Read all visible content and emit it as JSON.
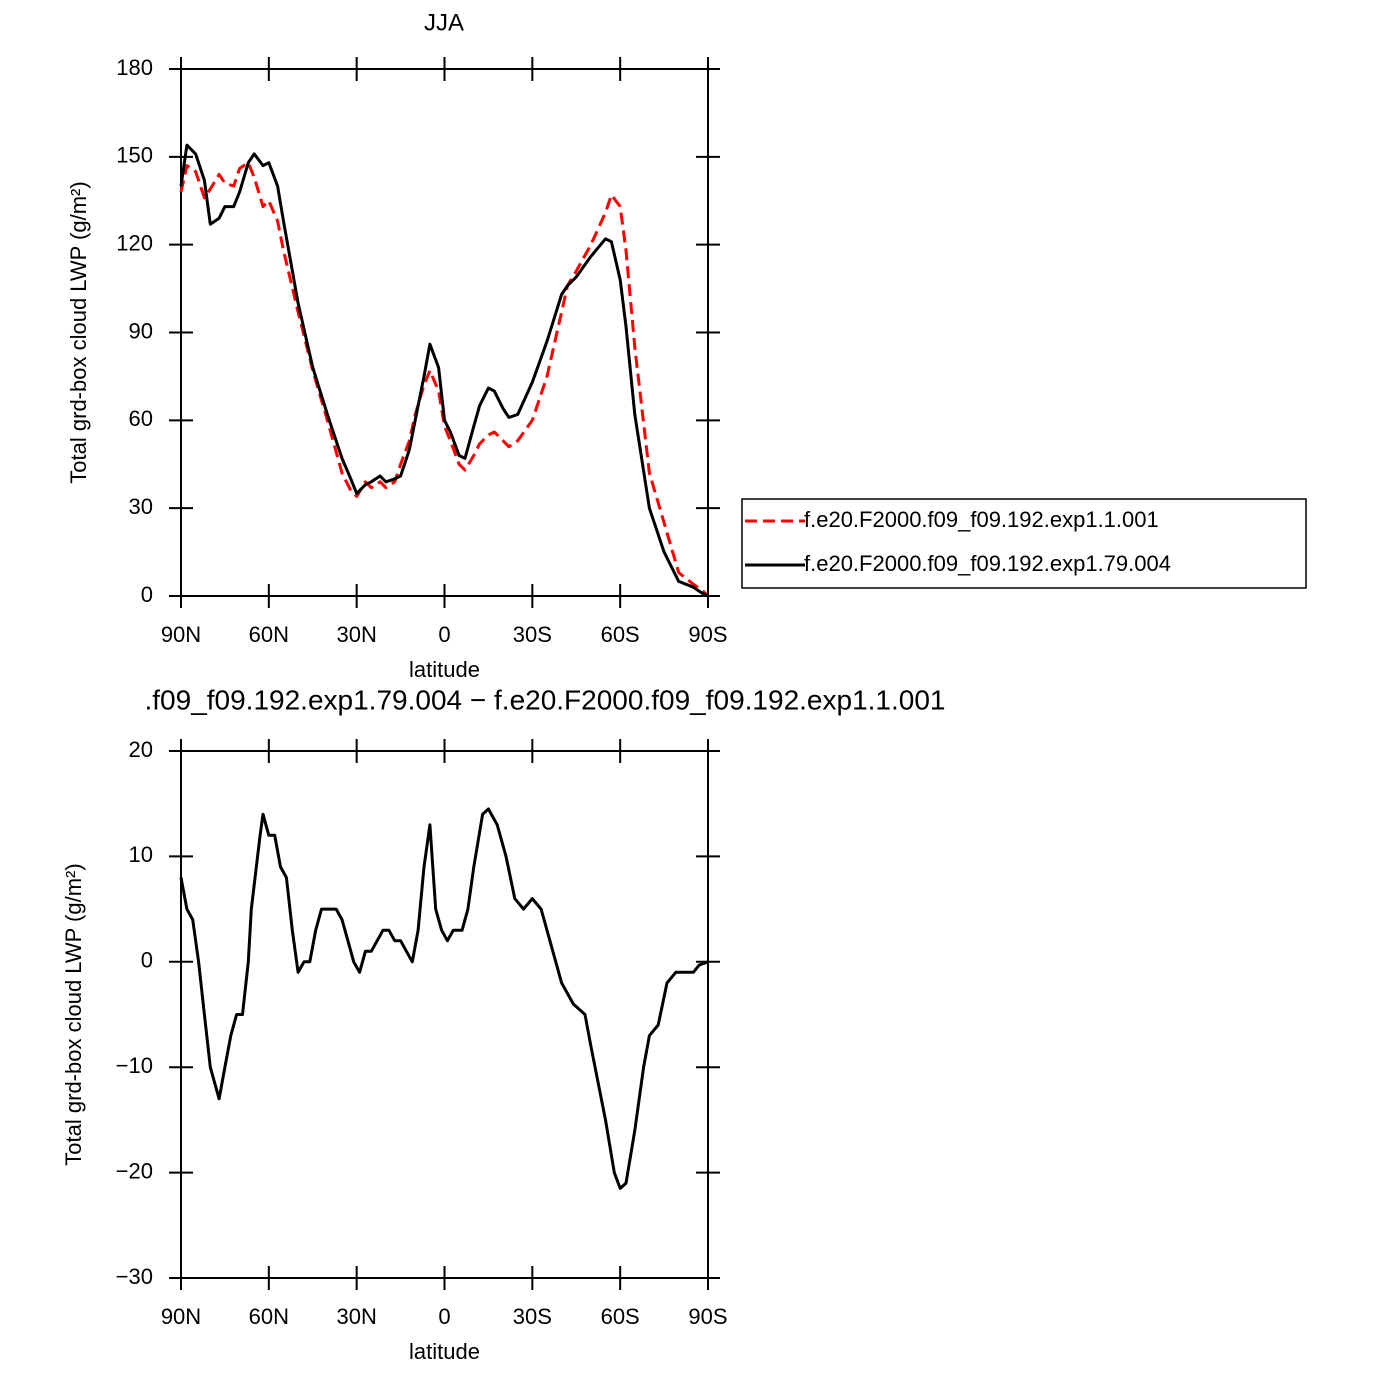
{
  "chart_data": [
    {
      "type": "line",
      "title": "JJA",
      "xlabel": "latitude",
      "ylabel": "Total grd-box cloud LWP (g/m²)",
      "x": [
        90,
        88,
        85,
        82,
        80,
        77,
        75,
        72,
        70,
        67,
        65,
        62,
        60,
        57,
        55,
        50,
        45,
        40,
        35,
        32,
        30,
        27,
        25,
        22,
        20,
        17,
        15,
        12,
        10,
        7,
        5,
        2,
        0,
        -2,
        -5,
        -7,
        -10,
        -12,
        -15,
        -17,
        -20,
        -22,
        -25,
        -30,
        -35,
        -40,
        -42,
        -45,
        -50,
        -55,
        -57,
        -60,
        -62,
        -65,
        -70,
        -75,
        -80,
        -85,
        -88,
        -90
      ],
      "series": [
        {
          "name": "f.e20.F2000.f09_f09.192.exp1.1.001",
          "color": "#ff0000",
          "linestyle": "dashed",
          "values": [
            138,
            147,
            145,
            136,
            139,
            144,
            141,
            140,
            146,
            148,
            143,
            133,
            135,
            128,
            118,
            97,
            77,
            60,
            42,
            36,
            34,
            39,
            37,
            39,
            37,
            39,
            45,
            53,
            62,
            72,
            77,
            70,
            58,
            53,
            45,
            43,
            48,
            52,
            55,
            56,
            53,
            51,
            53,
            60,
            75,
            97,
            106,
            111,
            120,
            131,
            137,
            133,
            118,
            85,
            42,
            25,
            8,
            4,
            2,
            0
          ]
        },
        {
          "name": "f.e20.F2000.f09_f09.192.exp1.79.004",
          "color": "#000000",
          "linestyle": "solid",
          "values": [
            140,
            154,
            151,
            142,
            127,
            129,
            133,
            133,
            138,
            148,
            151,
            147,
            148,
            140,
            128,
            100,
            78,
            62,
            47,
            40,
            35,
            38,
            39,
            41,
            39,
            40,
            41,
            50,
            60,
            75,
            86,
            78,
            60,
            56,
            48,
            47,
            58,
            65,
            71,
            70,
            64,
            61,
            62,
            73,
            87,
            103,
            106,
            109,
            116,
            122,
            121,
            108,
            92,
            62,
            30,
            15,
            5,
            3,
            1,
            0
          ]
        }
      ],
      "xlim": [
        90,
        -90
      ],
      "xticks": [
        {
          "value": 90,
          "label": "90N"
        },
        {
          "value": 60,
          "label": "60N"
        },
        {
          "value": 30,
          "label": "30N"
        },
        0,
        {
          "value": -30,
          "label": "30S"
        },
        {
          "value": -60,
          "label": "60S"
        },
        {
          "value": -90,
          "label": "90S"
        }
      ],
      "ylim": [
        0,
        180
      ],
      "yticks": [
        0,
        30,
        60,
        90,
        120,
        150,
        180
      ],
      "legend": "right"
    },
    {
      "type": "line",
      "title": ".f09_f09.192.exp1.79.004 − f.e20.F2000.f09_f09.192.exp1.1.001",
      "xlabel": "latitude",
      "ylabel": "Total grd-box cloud LWP (g/m²)",
      "x": [
        90,
        88,
        86,
        84,
        82,
        80,
        77,
        75,
        73,
        71,
        69,
        67,
        66,
        63,
        62,
        60,
        58,
        56,
        54,
        52,
        50,
        48,
        46,
        44,
        42,
        37,
        35,
        33,
        31,
        29,
        27,
        25,
        23,
        21,
        19,
        17,
        15,
        13,
        11,
        9,
        7,
        5,
        3,
        1,
        -1,
        -3,
        -6,
        -8,
        -10,
        -13,
        -15,
        -18,
        -21,
        -24,
        -27,
        -30,
        -33,
        -36,
        -40,
        -44,
        -48,
        -50,
        -55,
        -58,
        -60,
        -62,
        -65,
        -68,
        -70,
        -73,
        -76,
        -79,
        -82,
        -85,
        -87,
        -90
      ],
      "series": [
        {
          "color": "#000000",
          "linestyle": "solid",
          "values": [
            8,
            5,
            4,
            0,
            -5,
            -10,
            -13,
            -10,
            -7,
            -5,
            -5,
            0,
            5,
            12,
            14,
            12,
            12,
            9,
            8,
            3,
            -1,
            0,
            0,
            3,
            5,
            5,
            4,
            2,
            0,
            -1,
            1,
            1,
            2,
            3,
            3,
            2,
            2,
            1,
            0,
            3,
            9,
            13,
            5,
            3,
            2,
            3,
            3,
            5,
            9,
            14,
            14.5,
            13,
            10,
            6,
            5,
            6,
            5,
            2,
            -2,
            -4,
            -5,
            -8,
            -15,
            -20,
            -21.5,
            -21,
            -16,
            -10,
            -7,
            -6,
            -2,
            -1,
            -1,
            -1,
            -0.3,
            0
          ]
        }
      ],
      "xlim": [
        90,
        -90
      ],
      "xticks": [
        {
          "value": 90,
          "label": "90N"
        },
        {
          "value": 60,
          "label": "60N"
        },
        {
          "value": 30,
          "label": "30N"
        },
        0,
        {
          "value": -30,
          "label": "30S"
        },
        {
          "value": -60,
          "label": "60S"
        },
        {
          "value": -90,
          "label": "90S"
        }
      ],
      "ylim": [
        -30,
        20
      ],
      "yticks": [
        {
          "value": -30,
          "label": "−30"
        },
        {
          "value": -20,
          "label": "−20"
        },
        {
          "value": -10,
          "label": "−10"
        },
        0,
        10,
        20
      ]
    }
  ]
}
